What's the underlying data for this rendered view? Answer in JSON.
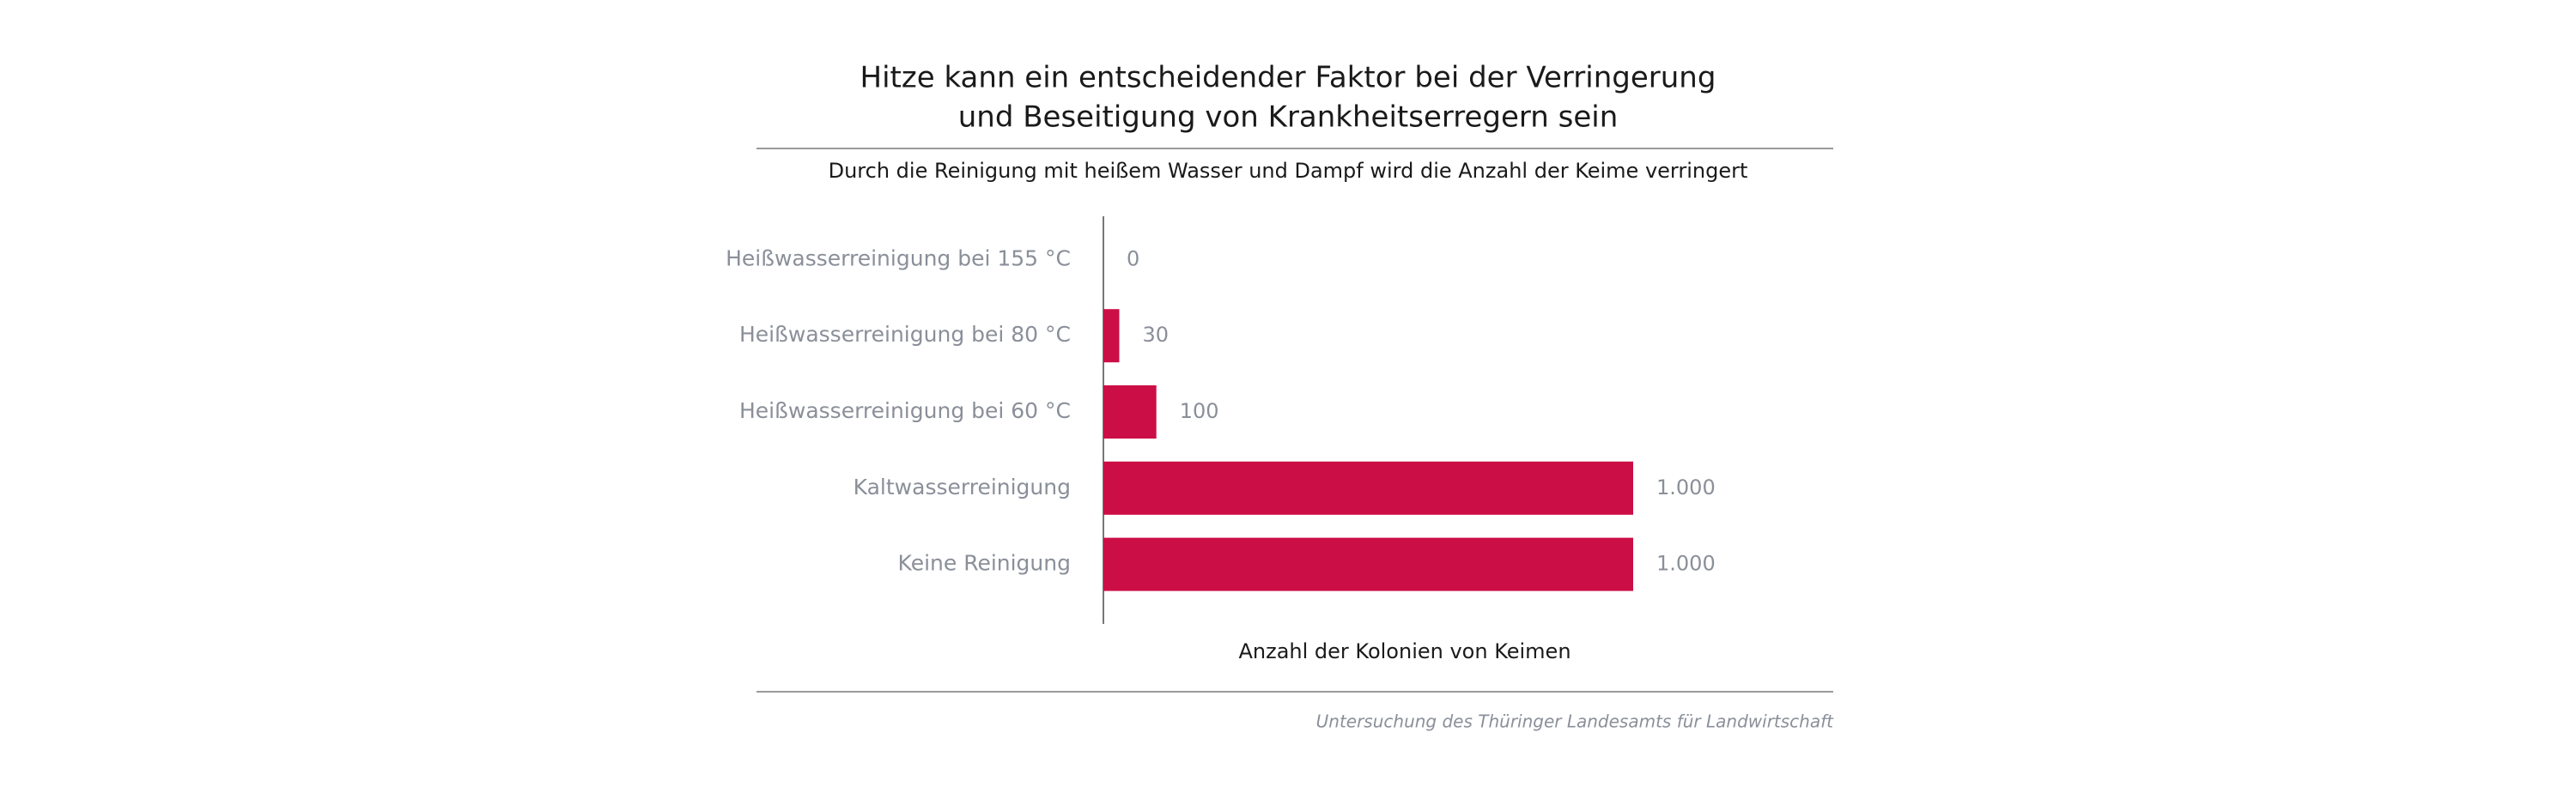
{
  "chart_data": {
    "type": "hbar",
    "title": [
      "Hitze kann ein entscheidender Faktor bei der Verringerung",
      "und Beseitigung von Krankheitserregern sein"
    ],
    "subtitle": "Durch die Reinigung mit heißem Wasser und Dampf wird die Anzahl der Keime verringert",
    "categories": [
      "Heißwasserreinigung bei 155 °C",
      "Heißwasserreinigung bei 80 °C",
      "Heißwasserreinigung bei 60 °C",
      "Kaltwasserreinigung",
      "Keine Reinigung"
    ],
    "values": [
      0,
      30,
      100,
      1000,
      1000
    ],
    "value_labels": [
      "0",
      "30",
      "100",
      "1.000",
      "1.000"
    ],
    "color": "#cc0e47",
    "xlim": [
      0,
      1000
    ],
    "xlabel": "Anzahl der Kolonien von Keimen",
    "source": "Untersuchung des Thüringer Landesamts für Landwirtschaft"
  }
}
